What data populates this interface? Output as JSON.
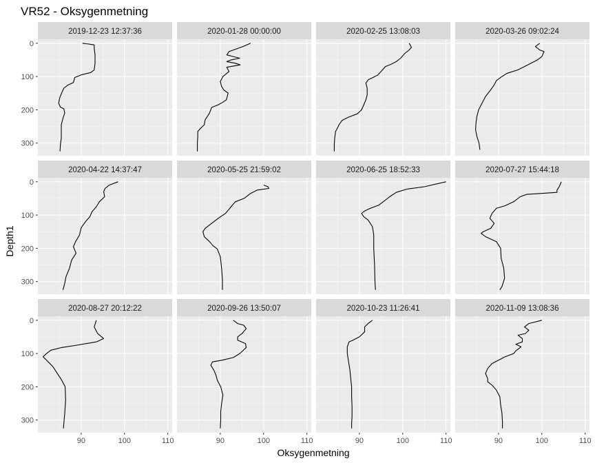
{
  "title": "VR52  -  Oksygenmetning",
  "chart_data": {
    "type": "line",
    "title": "VR52  -  Oksygenmetning",
    "xlabel": "Oksygenmetning",
    "ylabel": "Depth1",
    "xlim": [
      80,
      111
    ],
    "ylim": [
      338,
      -12
    ],
    "y_reversed": true,
    "x_ticks": [
      90,
      100,
      110
    ],
    "y_ticks": [
      0,
      100,
      200,
      300
    ],
    "grid": true,
    "facets": [
      {
        "label": "2019-12-23 12:37:36",
        "points": [
          [
            90.3,
            0
          ],
          [
            92,
            3
          ],
          [
            93,
            5
          ],
          [
            93,
            15
          ],
          [
            93.2,
            35
          ],
          [
            93.2,
            60
          ],
          [
            93,
            80
          ],
          [
            92.2,
            88
          ],
          [
            90,
            95
          ],
          [
            88.5,
            103
          ],
          [
            88.2,
            118
          ],
          [
            87,
            125
          ],
          [
            86,
            135
          ],
          [
            85.4,
            152
          ],
          [
            85,
            165
          ],
          [
            84.8,
            180
          ],
          [
            85.2,
            192
          ],
          [
            86,
            197
          ],
          [
            86.2,
            210
          ],
          [
            85.8,
            225
          ],
          [
            85.4,
            245
          ],
          [
            85.4,
            265
          ],
          [
            85.4,
            285
          ],
          [
            85.2,
            305
          ],
          [
            85.1,
            325
          ]
        ]
      },
      {
        "label": "2020-01-28 00:00:00",
        "points": [
          [
            97,
            0
          ],
          [
            95.2,
            10
          ],
          [
            93.5,
            18
          ],
          [
            92,
            25
          ],
          [
            91.5,
            35
          ],
          [
            93,
            40
          ],
          [
            94.5,
            45
          ],
          [
            92.5,
            50
          ],
          [
            91.5,
            55
          ],
          [
            93.5,
            60
          ],
          [
            94.6,
            65
          ],
          [
            91.5,
            72
          ],
          [
            92,
            85
          ],
          [
            90.6,
            100
          ],
          [
            90,
            115
          ],
          [
            90.3,
            130
          ],
          [
            90.8,
            140
          ],
          [
            91.8,
            150
          ],
          [
            91.6,
            160
          ],
          [
            91.4,
            170
          ],
          [
            90.5,
            178
          ],
          [
            89.5,
            185
          ],
          [
            88,
            193
          ],
          [
            87.5,
            210
          ],
          [
            86.5,
            230
          ],
          [
            86.3,
            245
          ],
          [
            85.5,
            255
          ],
          [
            84.8,
            265
          ],
          [
            84.8,
            280
          ],
          [
            84.7,
            300
          ],
          [
            84.7,
            325
          ]
        ]
      },
      {
        "label": "2020-02-25 13:08:03",
        "points": [
          [
            101.5,
            0
          ],
          [
            102,
            12
          ],
          [
            101.5,
            20
          ],
          [
            100.5,
            30
          ],
          [
            99.5,
            45
          ],
          [
            98.5,
            55
          ],
          [
            97.5,
            62
          ],
          [
            96,
            70
          ],
          [
            95.2,
            82
          ],
          [
            94.2,
            96
          ],
          [
            92,
            110
          ],
          [
            91.5,
            120
          ],
          [
            91.8,
            135
          ],
          [
            91.8,
            155
          ],
          [
            91.5,
            170
          ],
          [
            91,
            185
          ],
          [
            90.5,
            200
          ],
          [
            89.5,
            212
          ],
          [
            87.5,
            222
          ],
          [
            86,
            232
          ],
          [
            85.3,
            245
          ],
          [
            84.8,
            258
          ],
          [
            84.5,
            265
          ],
          [
            84.3,
            285
          ],
          [
            84.2,
            305
          ],
          [
            84.2,
            325
          ]
        ]
      },
      {
        "label": "2020-03-26 09:02:24",
        "points": [
          [
            99.5,
            0
          ],
          [
            98.5,
            10
          ],
          [
            99.5,
            20
          ],
          [
            100.5,
            25
          ],
          [
            100,
            40
          ],
          [
            99,
            50
          ],
          [
            97.5,
            60
          ],
          [
            96,
            70
          ],
          [
            94.5,
            80
          ],
          [
            92,
            90
          ],
          [
            90.8,
            100
          ],
          [
            89.5,
            112
          ],
          [
            89,
            125
          ],
          [
            88.2,
            140
          ],
          [
            87,
            160
          ],
          [
            86.2,
            180
          ],
          [
            85.4,
            200
          ],
          [
            85,
            220
          ],
          [
            84.8,
            240
          ],
          [
            84.7,
            260
          ],
          [
            85,
            280
          ],
          [
            85.5,
            300
          ],
          [
            85.6,
            310
          ],
          [
            85.7,
            320
          ]
        ]
      },
      {
        "label": "2020-04-22 14:37:47",
        "points": [
          [
            98.5,
            0
          ],
          [
            96.5,
            10
          ],
          [
            95.5,
            20
          ],
          [
            95.2,
            30
          ],
          [
            95.4,
            45
          ],
          [
            94.2,
            60
          ],
          [
            93.5,
            75
          ],
          [
            92.5,
            90
          ],
          [
            92,
            105
          ],
          [
            91,
            120
          ],
          [
            90,
            138
          ],
          [
            89.6,
            160
          ],
          [
            88.7,
            180
          ],
          [
            88.2,
            195
          ],
          [
            88.8,
            215
          ],
          [
            87.8,
            235
          ],
          [
            87.3,
            260
          ],
          [
            86.5,
            285
          ],
          [
            86.2,
            305
          ],
          [
            85.8,
            325
          ]
        ]
      },
      {
        "label": "2020-05-25 21:59:02",
        "points": [
          [
            100,
            10
          ],
          [
            101,
            15
          ],
          [
            101.2,
            20
          ],
          [
            98.5,
            25
          ],
          [
            97,
            35
          ],
          [
            95.5,
            50
          ],
          [
            93.5,
            60
          ],
          [
            92.8,
            70
          ],
          [
            92.2,
            80
          ],
          [
            91.2,
            95
          ],
          [
            89.5,
            110
          ],
          [
            88,
            125
          ],
          [
            86.5,
            140
          ],
          [
            86,
            150
          ],
          [
            86.3,
            165
          ],
          [
            87.5,
            180
          ],
          [
            88.3,
            192
          ],
          [
            89.3,
            202
          ],
          [
            90,
            225
          ],
          [
            90.3,
            260
          ],
          [
            90.5,
            295
          ],
          [
            90.5,
            325
          ]
        ]
      },
      {
        "label": "2020-06-25 18:52:33",
        "points": [
          [
            110,
            0
          ],
          [
            105,
            15
          ],
          [
            101,
            22
          ],
          [
            98.5,
            32
          ],
          [
            97,
            45
          ],
          [
            95.5,
            60
          ],
          [
            94.5,
            70
          ],
          [
            92.5,
            80
          ],
          [
            91.2,
            88
          ],
          [
            90.5,
            95
          ],
          [
            91,
            105
          ],
          [
            92,
            115
          ],
          [
            93,
            135
          ],
          [
            93.3,
            160
          ],
          [
            93.3,
            200
          ],
          [
            93.5,
            250
          ],
          [
            93.6,
            300
          ],
          [
            93.7,
            325
          ]
        ]
      },
      {
        "label": "2020-07-27 15:44:18",
        "points": [
          [
            104.5,
            0
          ],
          [
            104,
            15
          ],
          [
            103.5,
            25
          ],
          [
            103.5,
            32
          ],
          [
            100,
            35
          ],
          [
            96.5,
            38
          ],
          [
            95,
            45
          ],
          [
            93.5,
            60
          ],
          [
            91.5,
            72
          ],
          [
            89.5,
            80
          ],
          [
            88.5,
            95
          ],
          [
            88,
            110
          ],
          [
            89,
            125
          ],
          [
            88.2,
            140
          ],
          [
            86.5,
            150
          ],
          [
            86,
            155
          ],
          [
            87,
            165
          ],
          [
            89.5,
            180
          ],
          [
            90.5,
            200
          ],
          [
            90.6,
            230
          ],
          [
            91.2,
            260
          ],
          [
            91.4,
            290
          ],
          [
            90.8,
            315
          ],
          [
            90.3,
            325
          ]
        ]
      },
      {
        "label": "2020-08-27 20:12:22",
        "points": [
          [
            93.5,
            0
          ],
          [
            93,
            20
          ],
          [
            93.8,
            40
          ],
          [
            95.2,
            55
          ],
          [
            93.5,
            65
          ],
          [
            89,
            75
          ],
          [
            85.5,
            82
          ],
          [
            83,
            90
          ],
          [
            82,
            100
          ],
          [
            81.2,
            110
          ],
          [
            82,
            120
          ],
          [
            83.5,
            140
          ],
          [
            84.5,
            160
          ],
          [
            85.5,
            180
          ],
          [
            86.3,
            200
          ],
          [
            86.4,
            240
          ],
          [
            86.2,
            280
          ],
          [
            86,
            310
          ],
          [
            85.9,
            325
          ]
        ]
      },
      {
        "label": "2020-09-26 13:50:07",
        "points": [
          [
            93,
            0
          ],
          [
            94,
            10
          ],
          [
            95.4,
            15
          ],
          [
            96,
            25
          ],
          [
            95,
            40
          ],
          [
            94,
            50
          ],
          [
            94,
            60
          ],
          [
            95.8,
            70
          ],
          [
            96,
            82
          ],
          [
            94.5,
            100
          ],
          [
            93,
            112
          ],
          [
            90.5,
            120
          ],
          [
            88.2,
            125
          ],
          [
            87.8,
            135
          ],
          [
            88.5,
            150
          ],
          [
            89,
            165
          ],
          [
            89.3,
            180
          ],
          [
            90.1,
            200
          ],
          [
            90.6,
            225
          ],
          [
            90.3,
            250
          ],
          [
            90.1,
            275
          ],
          [
            90.1,
            300
          ],
          [
            90,
            325
          ]
        ]
      },
      {
        "label": "2020-10-23 11:26:41",
        "points": [
          [
            93,
            0
          ],
          [
            92,
            10
          ],
          [
            91.2,
            20
          ],
          [
            91.2,
            35
          ],
          [
            90,
            50
          ],
          [
            88.5,
            60
          ],
          [
            87.6,
            65
          ],
          [
            87.2,
            80
          ],
          [
            87.2,
            100
          ],
          [
            87.5,
            125
          ],
          [
            87.8,
            150
          ],
          [
            88,
            175
          ],
          [
            88.2,
            200
          ],
          [
            88.2,
            230
          ],
          [
            88.3,
            260
          ],
          [
            88.3,
            290
          ],
          [
            88.2,
            310
          ],
          [
            88.2,
            325
          ]
        ]
      },
      {
        "label": "2020-11-09 13:08:36",
        "points": [
          [
            100,
            0
          ],
          [
            97,
            10
          ],
          [
            96,
            20
          ],
          [
            97,
            30
          ],
          [
            96.2,
            40
          ],
          [
            94.5,
            45
          ],
          [
            95.5,
            55
          ],
          [
            95.5,
            65
          ],
          [
            94,
            72
          ],
          [
            95.2,
            80
          ],
          [
            94,
            92
          ],
          [
            93.5,
            100
          ],
          [
            91.5,
            110
          ],
          [
            90,
            120
          ],
          [
            88.5,
            130
          ],
          [
            87.5,
            145
          ],
          [
            87,
            160
          ],
          [
            87.5,
            175
          ],
          [
            87.5,
            185
          ],
          [
            88.5,
            195
          ],
          [
            89.5,
            210
          ],
          [
            90.3,
            230
          ],
          [
            90.5,
            255
          ],
          [
            90.8,
            280
          ],
          [
            90.9,
            305
          ],
          [
            90.9,
            325
          ]
        ]
      }
    ]
  }
}
